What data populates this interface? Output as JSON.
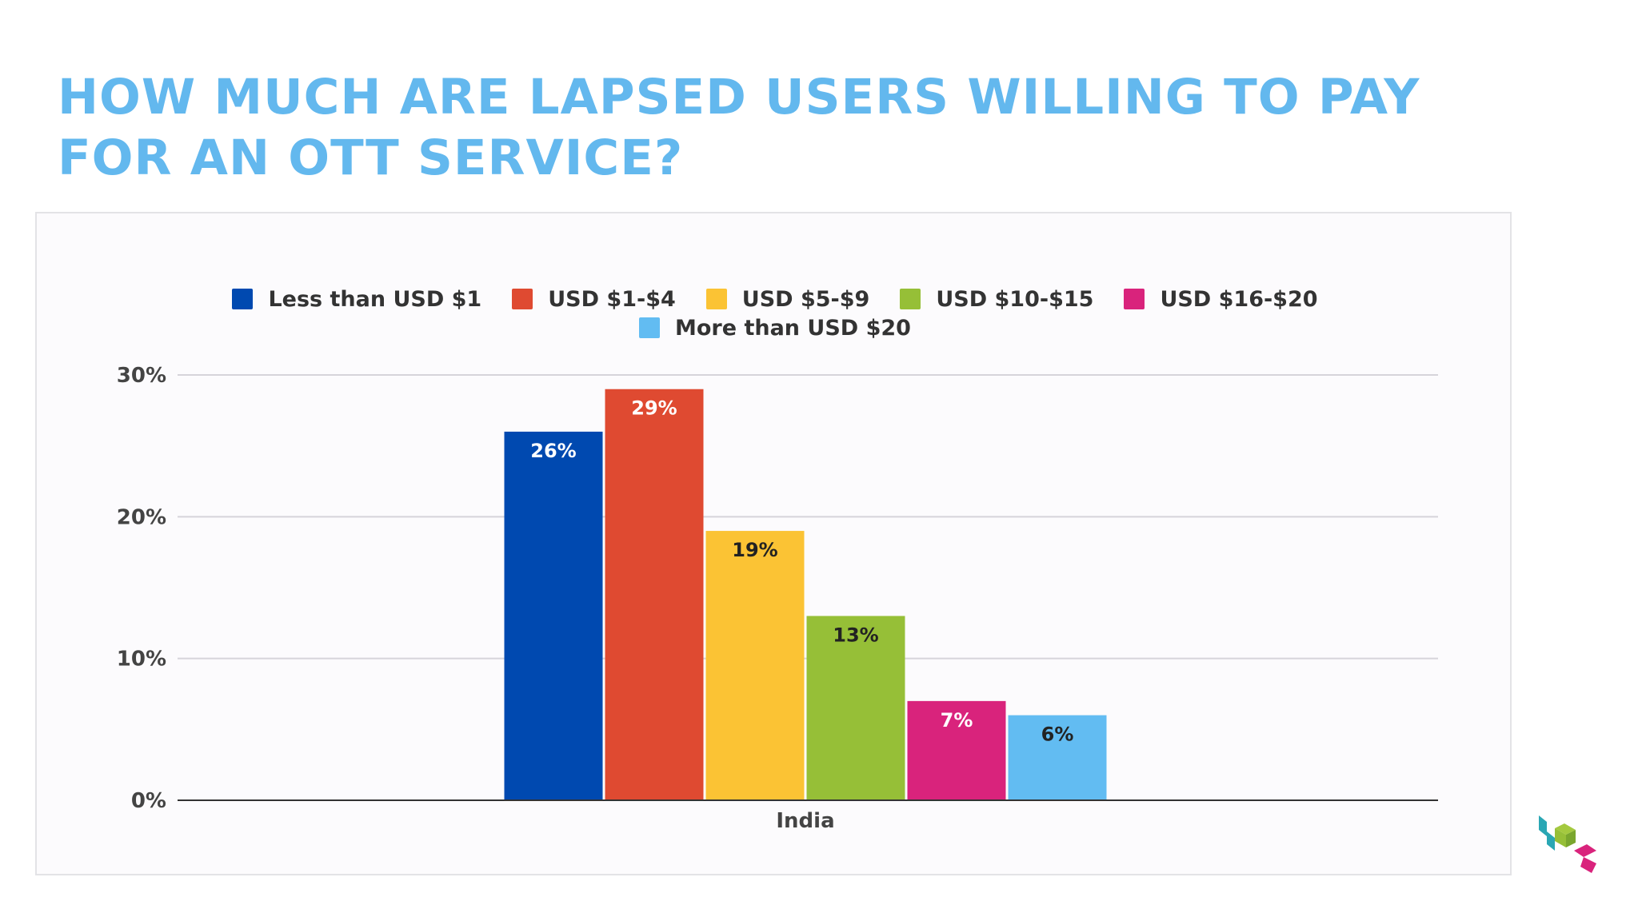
{
  "slide": {
    "title": "HOW MUCH ARE LAPSED USERS WILLING TO PAY FOR AN OTT SERVICE?"
  },
  "chart_data": {
    "type": "bar",
    "title": "",
    "xlabel": "",
    "ylabel": "",
    "categories": [
      "India"
    ],
    "series": [
      {
        "name": "Less than USD $1",
        "values": [
          26
        ],
        "label": "26%",
        "color": "#0049b0",
        "label_color": "#ffffff"
      },
      {
        "name": "USD $1-$4",
        "values": [
          29
        ],
        "label": "29%",
        "color": "#df4a31",
        "label_color": "#ffffff"
      },
      {
        "name": "USD $5-$9",
        "values": [
          19
        ],
        "label": "19%",
        "color": "#fbc334",
        "label_color": "#222222"
      },
      {
        "name": "USD $10-$15",
        "values": [
          13
        ],
        "label": "13%",
        "color": "#96bf37",
        "label_color": "#222222"
      },
      {
        "name": "USD $16-$20",
        "values": [
          7
        ],
        "label": "7%",
        "color": "#d9237c",
        "label_color": "#ffffff"
      },
      {
        "name": "More than USD $20",
        "values": [
          6
        ],
        "label": "6%",
        "color": "#62bcf2",
        "label_color": "#222222"
      }
    ],
    "ylim": [
      0,
      30
    ],
    "yticks": [
      0,
      10,
      20,
      30
    ],
    "ytick_labels": [
      "0%",
      "10%",
      "20%",
      "30%"
    ],
    "grid": true,
    "legend_position": "top-center"
  },
  "logo": {
    "icon": "cube-logo-icon",
    "colors": [
      "#2aa7b4",
      "#96bf37",
      "#d9237c"
    ]
  }
}
